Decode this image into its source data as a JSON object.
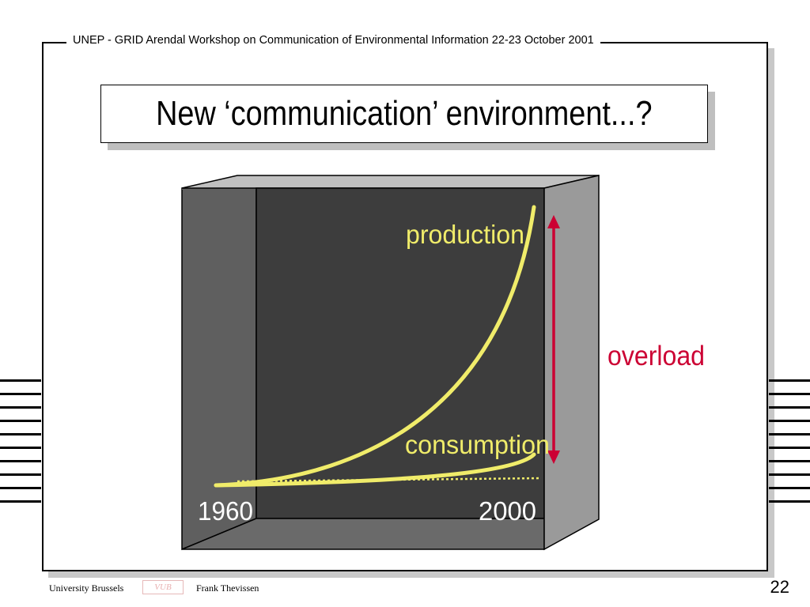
{
  "header": {
    "text": "UNEP - GRID Arendal  Workshop on Communication of Environmental Information 22-23 October 2001"
  },
  "title": "New ‘communication’ environment...?",
  "diagram": {
    "production_label": "production",
    "consumption_label": "consumption",
    "overload_label": "overload",
    "x_start_label": "1960",
    "x_end_label": "2000",
    "colors": {
      "curve": "#f0ec6a",
      "overload": "#cc0033",
      "box_back": "#3d3d3d",
      "box_side": "#9a9a9a",
      "box_left": "#5f5f5f",
      "box_top": "#c0c0c0"
    }
  },
  "footer": {
    "institution": "University Brussels",
    "logo_text": "VUB",
    "author": "Frank Thevissen",
    "page_number": "22"
  }
}
